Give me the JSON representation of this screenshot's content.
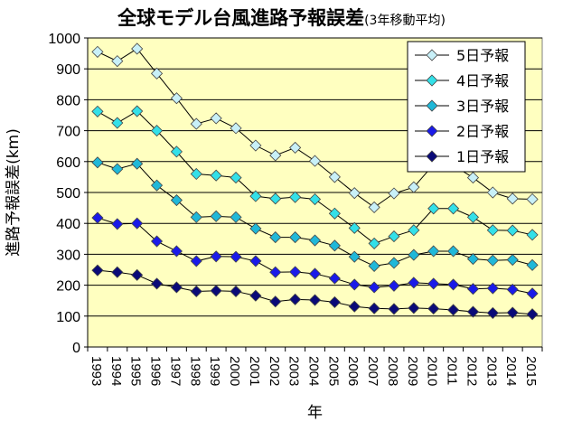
{
  "chart_data": {
    "type": "line",
    "title": "全球モデル台風進路予報誤差",
    "subtitle": "(3年移動平均)",
    "xlabel": "年",
    "ylabel": "進路予報誤差(km)",
    "ylim": [
      0,
      1000
    ],
    "yticks": [
      0,
      100,
      200,
      300,
      400,
      500,
      600,
      700,
      800,
      900,
      1000
    ],
    "grid": true,
    "legend_position": "top-right",
    "x": [
      "1993",
      "1994",
      "1995",
      "1996",
      "1997",
      "1998",
      "1999",
      "2000",
      "2001",
      "2002",
      "2003",
      "2004",
      "2005",
      "2006",
      "2007",
      "2008",
      "2009",
      "2010",
      "2011",
      "2012",
      "2013",
      "2014",
      "2015"
    ],
    "series": [
      {
        "name": "5日予報",
        "color": "#c8f0f8",
        "values": [
          955,
          925,
          965,
          885,
          805,
          722,
          740,
          708,
          652,
          620,
          645,
          602,
          550,
          498,
          452,
          497,
          517,
          590,
          588,
          548,
          500,
          480,
          478
        ]
      },
      {
        "name": "4日予報",
        "color": "#33e0e8",
        "values": [
          762,
          725,
          763,
          700,
          632,
          560,
          555,
          548,
          488,
          480,
          485,
          478,
          432,
          385,
          335,
          358,
          378,
          448,
          448,
          420,
          378,
          377,
          363
        ]
      },
      {
        "name": "3日予報",
        "color": "#20b8d8",
        "values": [
          597,
          576,
          593,
          523,
          475,
          420,
          423,
          420,
          383,
          355,
          355,
          345,
          328,
          292,
          262,
          272,
          298,
          310,
          310,
          285,
          280,
          282,
          265
        ]
      },
      {
        "name": "2日予報",
        "color": "#1a1ae8",
        "values": [
          418,
          398,
          400,
          342,
          310,
          278,
          293,
          292,
          278,
          242,
          243,
          237,
          222,
          202,
          193,
          198,
          208,
          205,
          202,
          188,
          190,
          186,
          173
        ]
      },
      {
        "name": "1日予報",
        "color": "#0a0a78",
        "values": [
          248,
          242,
          233,
          205,
          193,
          180,
          182,
          180,
          166,
          147,
          154,
          152,
          145,
          131,
          125,
          123,
          126,
          124,
          120,
          114,
          110,
          111,
          106
        ]
      }
    ],
    "colors": {
      "plot_background": "#ffffc0",
      "line": "#000000"
    }
  }
}
